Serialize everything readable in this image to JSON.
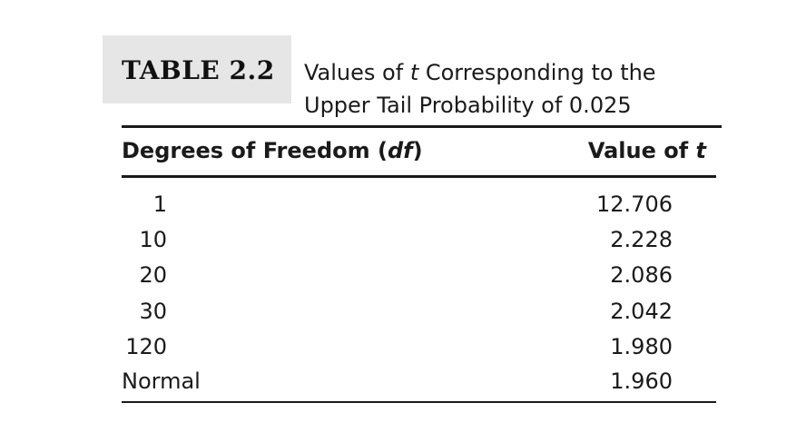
{
  "table": {
    "tag": "TABLE 2.2",
    "caption_line1_prefix": "Values of ",
    "caption_line1_var": "t",
    "caption_line1_suffix": " Corresponding to the",
    "caption_line2": "Upper Tail Probability of 0.025",
    "header_df_prefix": "Degrees of Freedom (",
    "header_df_var": "df",
    "header_df_suffix": ")",
    "header_t_prefix": "Value of ",
    "header_t_var": "t",
    "rows": [
      {
        "df": "1",
        "t": "12.706"
      },
      {
        "df": "10",
        "t": "2.228"
      },
      {
        "df": "20",
        "t": "2.086"
      },
      {
        "df": "30",
        "t": "2.042"
      },
      {
        "df": "120",
        "t": "1.980"
      },
      {
        "df": "Normal",
        "t": "1.960"
      }
    ]
  }
}
